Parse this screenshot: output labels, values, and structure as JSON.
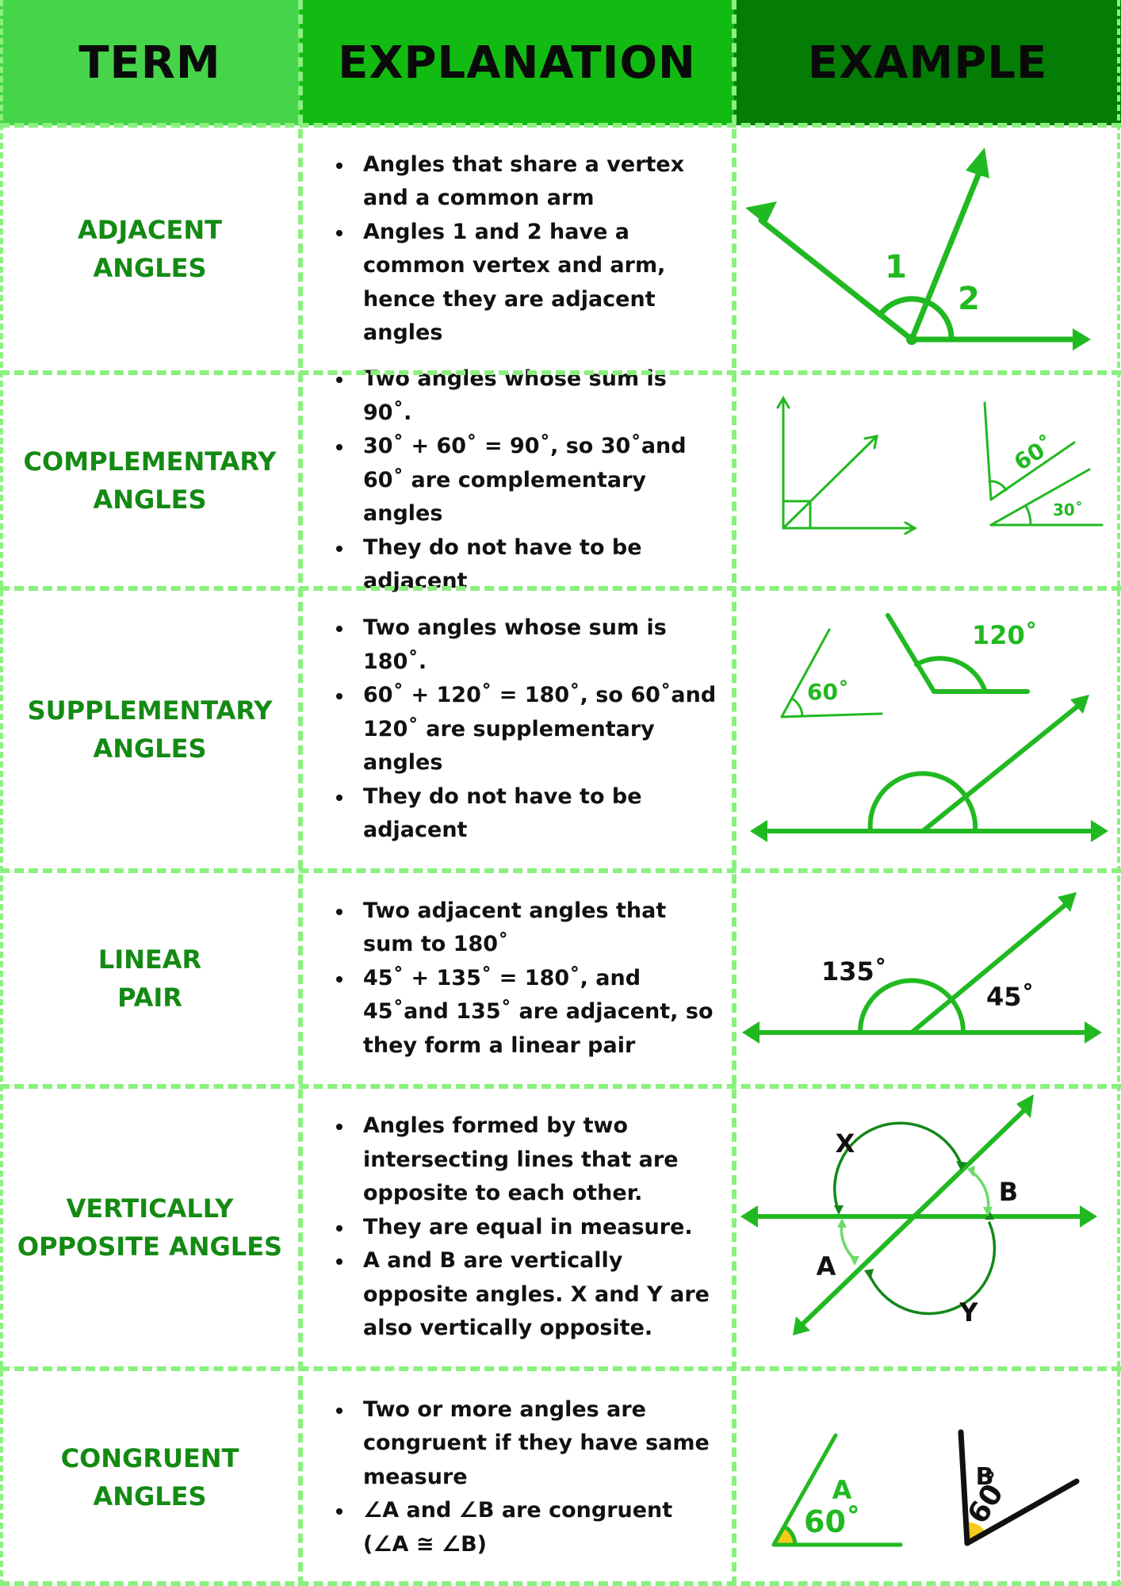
{
  "header": {
    "term": "TERM",
    "explanation": "EXPLANATION",
    "example": "EXAMPLE"
  },
  "colors": {
    "term_header": "#46d44a",
    "explanation_header": "#12bb12",
    "example_header": "#037d06",
    "term_text": "#138a13",
    "diagram_green": "#21b921",
    "dashed_border": "#8af07e"
  },
  "rows": [
    {
      "term": "ADJACENT\nANGLES",
      "bullets": [
        " Angles that share a vertex and a common arm",
        "Angles 1 and 2 have a common vertex and arm, hence they are adjacent angles"
      ],
      "example": {
        "label_1": "1",
        "label_2": "2"
      }
    },
    {
      "term": "COMPLEMENTARY\nANGLES",
      "bullets": [
        "Two angles whose sum is 90˚.",
        "30˚ + 60˚ = 90˚, so 30˚and 60˚ are complementary angles",
        "They do not have to be adjacent"
      ],
      "example": {
        "angle_a": "60˚",
        "angle_b": "30˚"
      }
    },
    {
      "term": "SUPPLEMENTARY\nANGLES",
      "bullets": [
        "Two angles whose sum is 180˚.",
        "60˚ + 120˚ = 180˚, so 60˚and 120˚ are supplementary angles",
        "They do not have to be adjacent"
      ],
      "example": {
        "angle_a": "60˚",
        "angle_b": "120˚"
      }
    },
    {
      "term": "LINEAR\nPAIR",
      "bullets": [
        "Two adjacent angles that sum to 180˚",
        "45˚ + 135˚ = 180˚, and  45˚and 135˚ are adjacent, so they form a linear pair"
      ],
      "example": {
        "angle_a": "135˚",
        "angle_b": "45˚"
      }
    },
    {
      "term": "VERTICALLY\nOPPOSITE ANGLES",
      "bullets": [
        " Angles formed by two intersecting lines that are opposite to each other.",
        "They are equal in measure.",
        "A and B are vertically opposite angles. X and Y are also vertically opposite."
      ],
      "example": {
        "label_x": "X",
        "label_y": "Y",
        "label_a": "A",
        "label_b": "B"
      }
    },
    {
      "term": "CONGRUENT\nANGLES",
      "bullets": [
        "Two or more angles are congruent if they have same measure",
        "∠A and ∠B are congruent (∠A ≅ ∠B)"
      ],
      "example": {
        "label_a": "A",
        "label_b": "B",
        "angle_a": "60˚",
        "angle_b": "60˚"
      }
    }
  ]
}
